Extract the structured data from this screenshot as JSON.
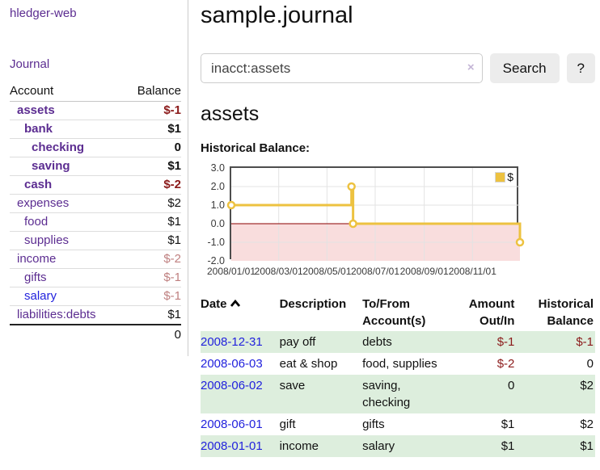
{
  "colors": {
    "accent_purple": "#5c2d91",
    "link_blue": "#2222dd",
    "negative": "#8b1a1a",
    "negative_soft": "#bf8080",
    "row_green": "#ddeedd",
    "chart_line": "#edc240",
    "chart_below_zero_fill": "#f9dddd",
    "chart_zero_line": "#8b0000"
  },
  "sidebar": {
    "brand": "hledger-web",
    "journal_link": "Journal",
    "headers": {
      "account": "Account",
      "balance": "Balance"
    },
    "accounts": [
      {
        "name": "assets",
        "balance": "$-1",
        "indent": 1,
        "bold": true,
        "name_style": "purple",
        "balance_style": "negative"
      },
      {
        "name": "bank",
        "balance": "$1",
        "indent": 2,
        "bold": true,
        "name_style": "purple",
        "balance_style": "normal"
      },
      {
        "name": "checking",
        "balance": "0",
        "indent": 3,
        "bold": true,
        "name_style": "purple",
        "balance_style": "normal"
      },
      {
        "name": "saving",
        "balance": "$1",
        "indent": 3,
        "bold": true,
        "name_style": "purple",
        "balance_style": "normal"
      },
      {
        "name": "cash",
        "balance": "$-2",
        "indent": 2,
        "bold": true,
        "name_style": "purple",
        "balance_style": "negative"
      },
      {
        "name": "expenses",
        "balance": "$2",
        "indent": 1,
        "bold": false,
        "name_style": "purple",
        "balance_style": "normal"
      },
      {
        "name": "food",
        "balance": "$1",
        "indent": 2,
        "bold": false,
        "name_style": "purple",
        "balance_style": "normal"
      },
      {
        "name": "supplies",
        "balance": "$1",
        "indent": 2,
        "bold": false,
        "name_style": "purple",
        "balance_style": "normal"
      },
      {
        "name": "income",
        "balance": "$-2",
        "indent": 1,
        "bold": false,
        "name_style": "purple",
        "balance_style": "negative-soft"
      },
      {
        "name": "gifts",
        "balance": "$-1",
        "indent": 2,
        "bold": false,
        "name_style": "purple",
        "balance_style": "negative-soft"
      },
      {
        "name": "salary",
        "balance": "$-1",
        "indent": 2,
        "bold": false,
        "name_style": "blue",
        "balance_style": "negative-soft"
      },
      {
        "name": "liabilities:debts",
        "balance": "$1",
        "indent": 1,
        "bold": false,
        "name_style": "purple",
        "balance_style": "normal"
      }
    ],
    "total": "0"
  },
  "main": {
    "title": "sample.journal",
    "search": {
      "value": "inacct:assets",
      "clear_icon": "×",
      "button_label": "Search",
      "help_label": "?"
    },
    "account_heading": "assets",
    "chart_label": "Historical Balance:"
  },
  "chart_data": {
    "type": "line",
    "step": true,
    "title": "Historical Balance:",
    "x_range": [
      "2008-01-01",
      "2008-12-31"
    ],
    "ylim": [
      -2,
      3
    ],
    "grid": true,
    "legend_position": "top-right",
    "below_zero_fill": "#f9dddd",
    "zero_line_color": "#8b0000",
    "y_ticks": [
      {
        "value": 3,
        "label": "3.0"
      },
      {
        "value": 2,
        "label": "2.0"
      },
      {
        "value": 1,
        "label": "1.0"
      },
      {
        "value": 0,
        "label": "0.0"
      },
      {
        "value": -1,
        "label": "-1.0"
      },
      {
        "value": -2,
        "label": "-2.0"
      }
    ],
    "x_ticks": [
      {
        "date": "2008-01-01",
        "label": "2008/01/01"
      },
      {
        "date": "2008-03-01",
        "label": "2008/03/01"
      },
      {
        "date": "2008-05-01",
        "label": "2008/05/01"
      },
      {
        "date": "2008-07-01",
        "label": "2008/07/01"
      },
      {
        "date": "2008-09-01",
        "label": "2008/09/01"
      },
      {
        "date": "2008-11-01",
        "label": "2008/11/01"
      }
    ],
    "series": [
      {
        "name": "$",
        "color": "#edc240",
        "points": [
          {
            "date": "2008-01-01",
            "value": 1
          },
          {
            "date": "2008-06-01",
            "value": 2
          },
          {
            "date": "2008-06-03",
            "value": 0
          },
          {
            "date": "2008-12-31",
            "value": -1
          }
        ]
      }
    ]
  },
  "register": {
    "headers": [
      "Date",
      "Description",
      "To/From Account(s)",
      "Amount Out/In",
      "Historical Balance"
    ],
    "sort": {
      "column": "Date",
      "direction": "ascending"
    },
    "rows": [
      {
        "date": "2008-12-31",
        "description": "pay off",
        "accounts": "debts",
        "amount": "$-1",
        "amount_style": "negative",
        "balance": "$-1",
        "balance_style": "negative"
      },
      {
        "date": "2008-06-03",
        "description": "eat & shop",
        "accounts": "food, supplies",
        "amount": "$-2",
        "amount_style": "negative",
        "balance": "0",
        "balance_style": "normal"
      },
      {
        "date": "2008-06-02",
        "description": "save",
        "accounts": "saving, checking",
        "amount": "0",
        "amount_style": "normal",
        "balance": "$2",
        "balance_style": "normal"
      },
      {
        "date": "2008-06-01",
        "description": "gift",
        "accounts": "gifts",
        "amount": "$1",
        "amount_style": "normal",
        "balance": "$2",
        "balance_style": "normal"
      },
      {
        "date": "2008-01-01",
        "description": "income",
        "accounts": "salary",
        "amount": "$1",
        "amount_style": "normal",
        "balance": "$1",
        "balance_style": "normal"
      }
    ]
  }
}
